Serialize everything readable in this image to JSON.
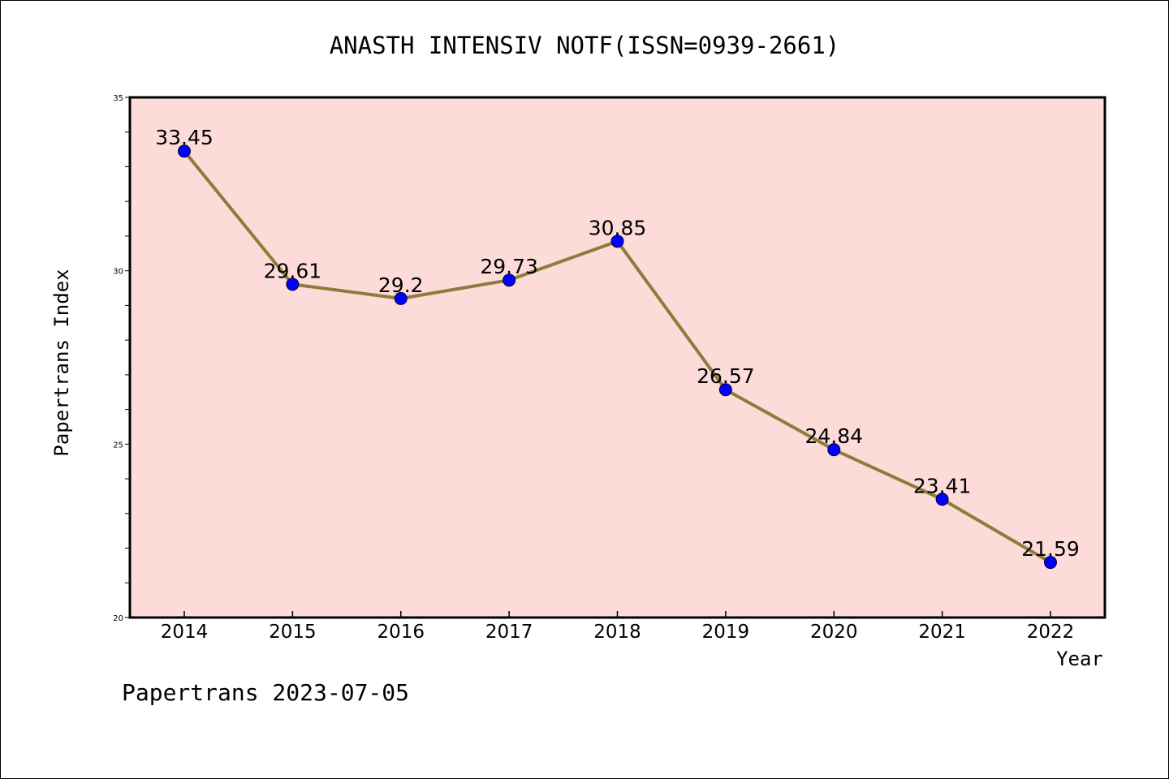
{
  "title": "ANASTH INTENSIV NOTF(ISSN=0939-2661)",
  "footer": "Papertrans 2023-07-05",
  "colors": {
    "plot_background": "#fddbd8",
    "line": "#8b7d3a",
    "marker": "#0000ff"
  },
  "chart_data": {
    "type": "line",
    "x": [
      "2014",
      "2015",
      "2016",
      "2017",
      "2018",
      "2019",
      "2020",
      "2021",
      "2022"
    ],
    "series": [
      {
        "values": [
          33.45,
          29.61,
          29.2,
          29.73,
          30.85,
          26.57,
          24.84,
          23.41,
          21.59
        ]
      }
    ],
    "data_labels": [
      "33.45",
      "29.61",
      "29.2",
      "29.73",
      "30.85",
      "26.57",
      "24.84",
      "23.41",
      "21.59"
    ],
    "xlabel": "Year",
    "ylabel": "Papertrans Index",
    "ylim": [
      20,
      35
    ],
    "yticks": [
      20,
      25,
      30,
      35
    ],
    "grid": false,
    "legend": false
  }
}
